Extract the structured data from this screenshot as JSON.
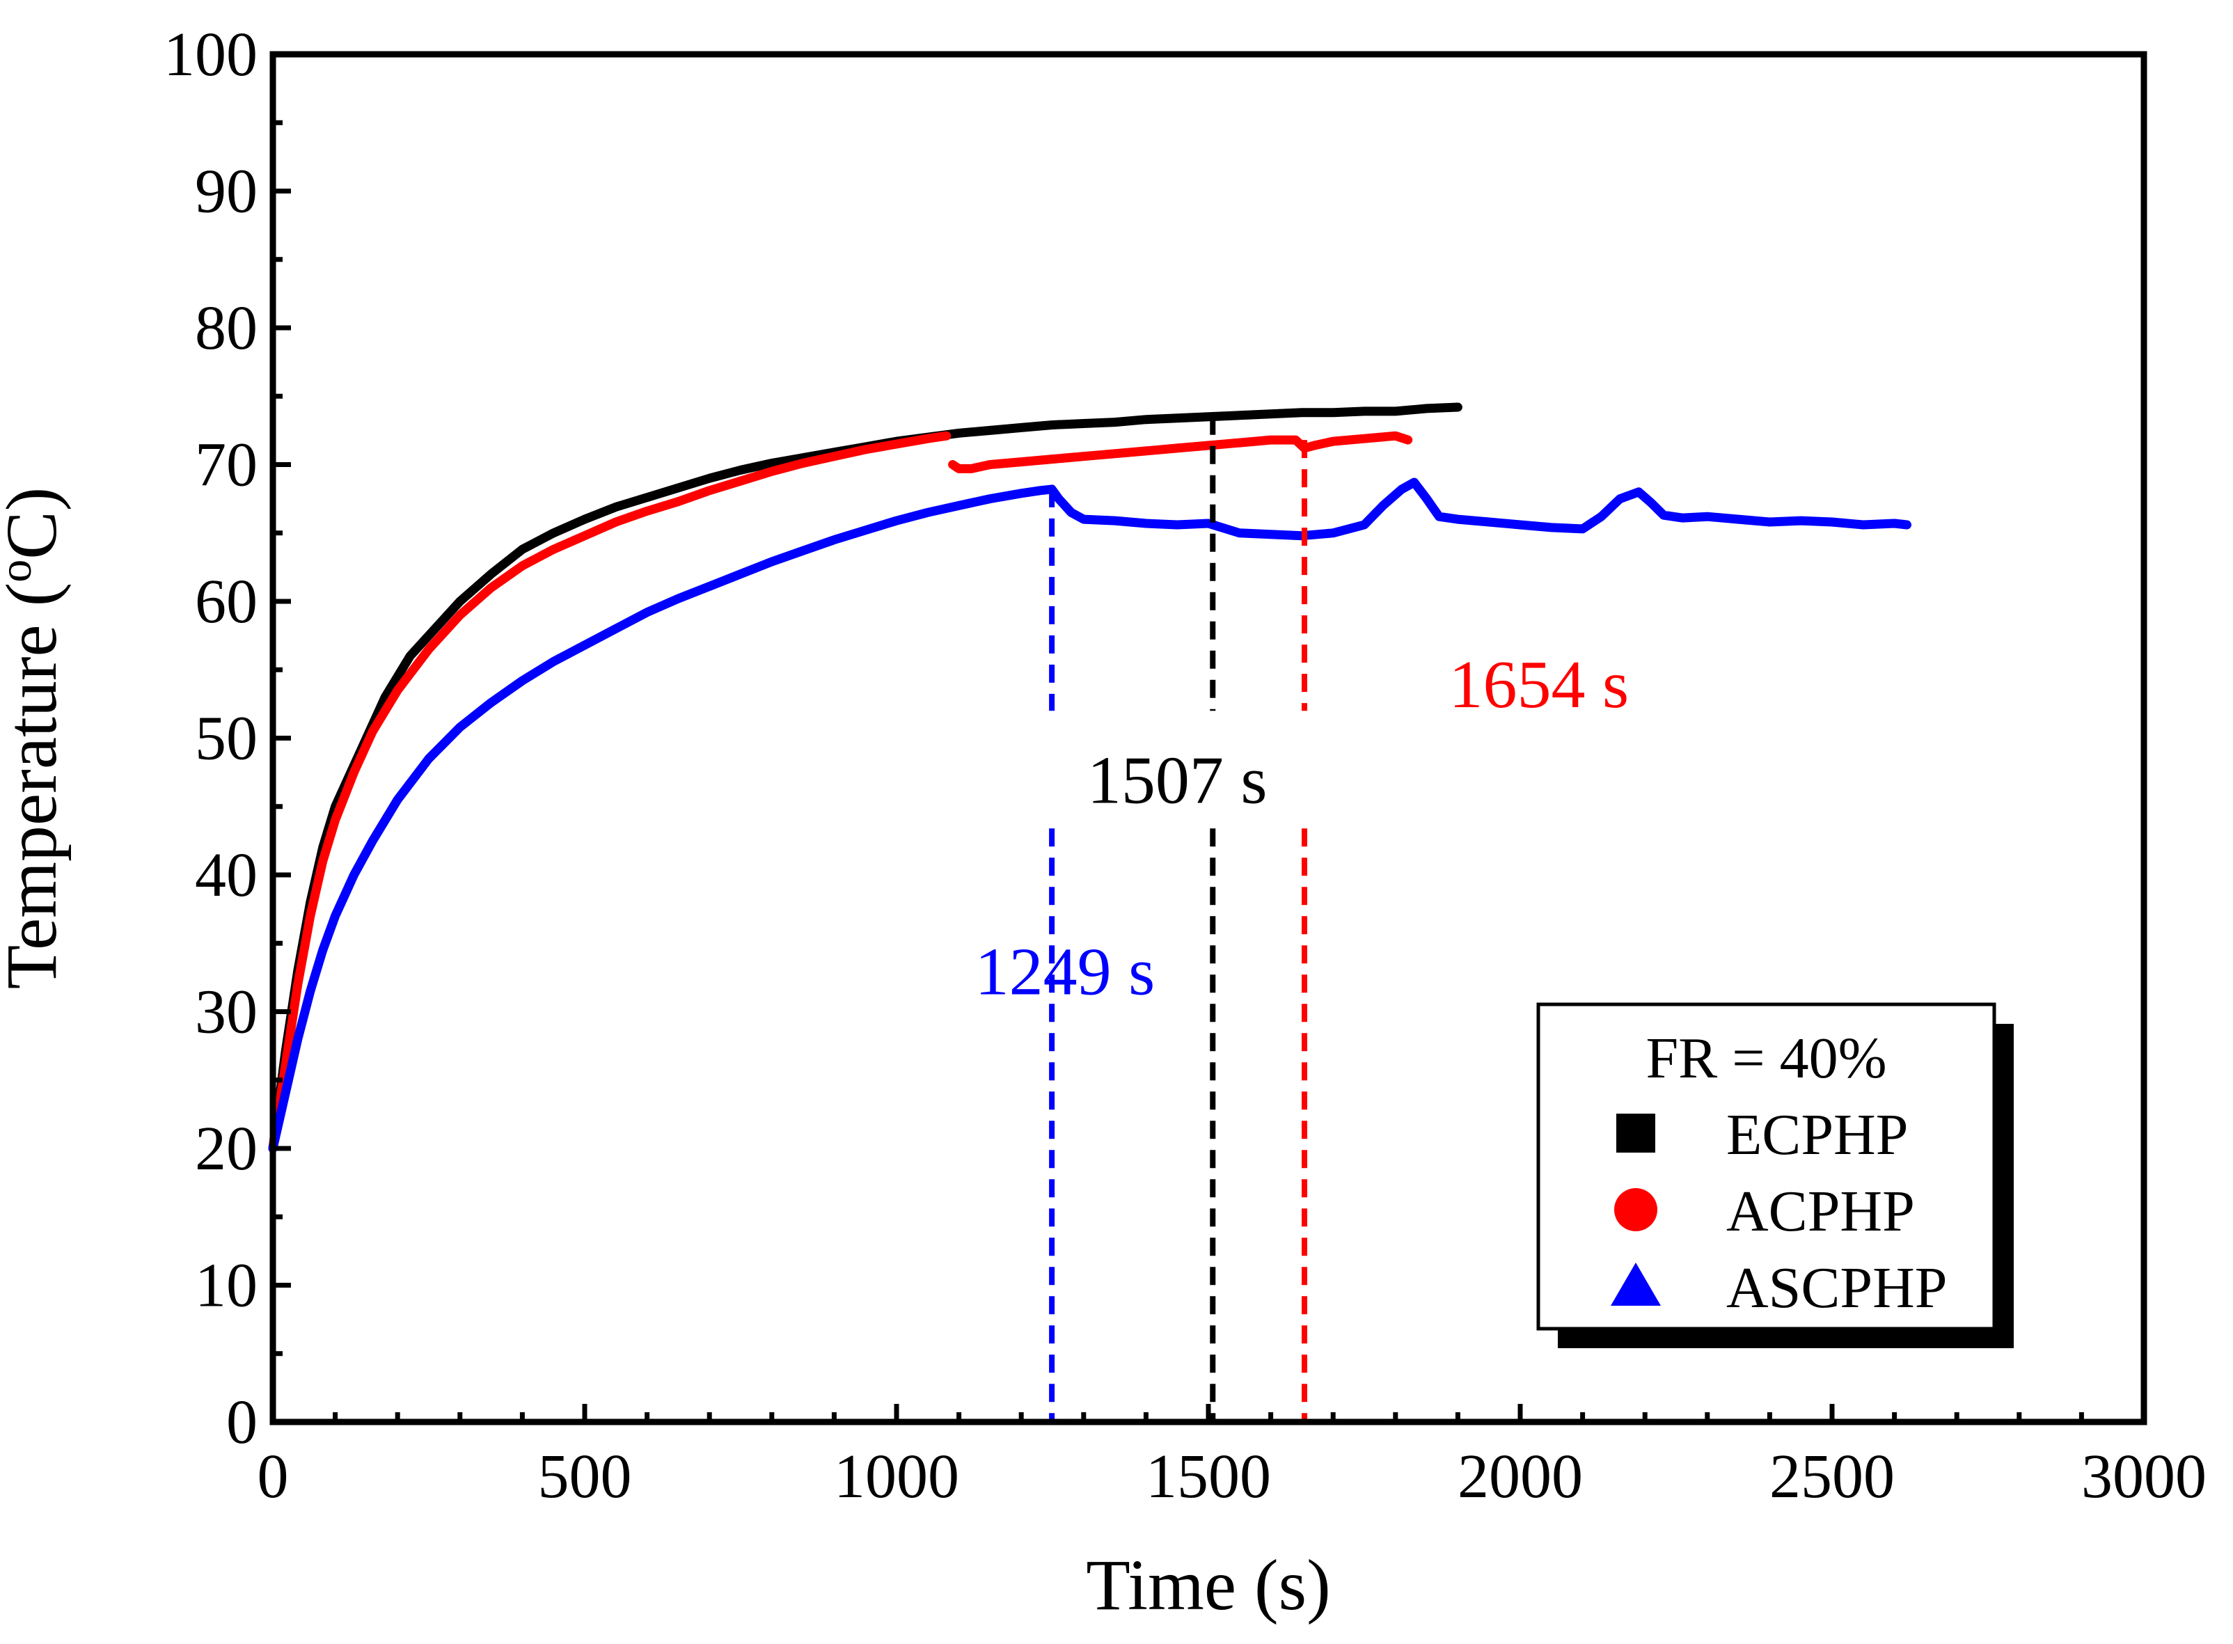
{
  "chart_data": {
    "type": "line",
    "xlabel": "Time (s)",
    "ylabel_parts": [
      "Temperature (",
      "o",
      "C)"
    ],
    "xlim": [
      0,
      3000
    ],
    "ylim": [
      0,
      100
    ],
    "xticks": [
      0,
      500,
      1000,
      1500,
      2000,
      2500,
      3000
    ],
    "yticks": [
      0,
      10,
      20,
      30,
      40,
      50,
      60,
      70,
      80,
      90,
      100
    ],
    "xtick_labels": [
      "0",
      "500",
      "1000",
      "1500",
      "2000",
      "2500",
      "3000"
    ],
    "ytick_labels": [
      "0",
      "10",
      "20",
      "30",
      "40",
      "50",
      "60",
      "70",
      "80",
      "90",
      "100"
    ],
    "grid": false,
    "legend": {
      "title": "FR = 40%",
      "position": "bottom-right",
      "entries": [
        {
          "name": "ECPHP",
          "marker": "square",
          "color": "#000000"
        },
        {
          "name": "ACPHP",
          "marker": "circle",
          "color": "#ff0000"
        },
        {
          "name": "ASCPHP",
          "marker": "triangle",
          "color": "#0000ff"
        }
      ]
    },
    "series": [
      {
        "name": "ECPHP",
        "color": "#000000",
        "segments": [
          [
            [
              0,
              20
            ],
            [
              20,
              27
            ],
            [
              40,
              33
            ],
            [
              60,
              38
            ],
            [
              80,
              42
            ],
            [
              100,
              45
            ],
            [
              120,
              47
            ],
            [
              150,
              50
            ],
            [
              180,
              53
            ],
            [
              220,
              56
            ],
            [
              260,
              58
            ],
            [
              300,
              60
            ],
            [
              350,
              62
            ],
            [
              400,
              63.8
            ],
            [
              450,
              65
            ],
            [
              500,
              66
            ],
            [
              550,
              66.9
            ],
            [
              600,
              67.6
            ],
            [
              650,
              68.3
            ],
            [
              700,
              69
            ],
            [
              750,
              69.6
            ],
            [
              800,
              70.1
            ],
            [
              850,
              70.5
            ],
            [
              900,
              70.9
            ],
            [
              950,
              71.3
            ],
            [
              1000,
              71.7
            ],
            [
              1050,
              72
            ],
            [
              1100,
              72.3
            ],
            [
              1150,
              72.5
            ],
            [
              1200,
              72.7
            ],
            [
              1250,
              72.9
            ],
            [
              1300,
              73
            ],
            [
              1350,
              73.1
            ],
            [
              1400,
              73.3
            ],
            [
              1450,
              73.4
            ],
            [
              1500,
              73.5
            ],
            [
              1550,
              73.6
            ],
            [
              1600,
              73.7
            ],
            [
              1650,
              73.8
            ],
            [
              1700,
              73.8
            ],
            [
              1750,
              73.9
            ],
            [
              1800,
              73.9
            ],
            [
              1850,
              74.1
            ],
            [
              1900,
              74.2
            ]
          ]
        ]
      },
      {
        "name": "ACPHP",
        "color": "#ff0000",
        "segments": [
          [
            [
              0,
              20
            ],
            [
              20,
              26
            ],
            [
              40,
              32
            ],
            [
              60,
              37
            ],
            [
              80,
              41
            ],
            [
              100,
              44
            ],
            [
              130,
              47.5
            ],
            [
              160,
              50.5
            ],
            [
              200,
              53.5
            ],
            [
              250,
              56.5
            ],
            [
              300,
              59
            ],
            [
              350,
              61
            ],
            [
              400,
              62.6
            ],
            [
              450,
              63.8
            ],
            [
              500,
              64.8
            ],
            [
              550,
              65.8
            ],
            [
              600,
              66.6
            ],
            [
              650,
              67.3
            ],
            [
              700,
              68.1
            ],
            [
              750,
              68.8
            ],
            [
              800,
              69.5
            ],
            [
              850,
              70.1
            ],
            [
              900,
              70.6
            ],
            [
              950,
              71.1
            ],
            [
              1000,
              71.5
            ],
            [
              1050,
              71.9
            ],
            [
              1080,
              72.1
            ]
          ],
          [
            [
              1090,
              70
            ],
            [
              1100,
              69.7
            ],
            [
              1120,
              69.7
            ],
            [
              1150,
              70
            ],
            [
              1200,
              70.2
            ],
            [
              1250,
              70.4
            ],
            [
              1300,
              70.6
            ],
            [
              1350,
              70.8
            ],
            [
              1400,
              71
            ],
            [
              1450,
              71.2
            ],
            [
              1500,
              71.4
            ],
            [
              1550,
              71.6
            ],
            [
              1600,
              71.8
            ],
            [
              1640,
              71.8
            ],
            [
              1654,
              71.2
            ],
            [
              1670,
              71.4
            ],
            [
              1700,
              71.7
            ],
            [
              1750,
              71.9
            ],
            [
              1800,
              72.1
            ],
            [
              1820,
              71.8
            ]
          ]
        ]
      },
      {
        "name": "ASCPHP",
        "color": "#0000ff",
        "segments": [
          [
            [
              0,
              20
            ],
            [
              20,
              24
            ],
            [
              40,
              28
            ],
            [
              60,
              31.5
            ],
            [
              80,
              34.5
            ],
            [
              100,
              37
            ],
            [
              130,
              40
            ],
            [
              160,
              42.5
            ],
            [
              200,
              45.5
            ],
            [
              250,
              48.5
            ],
            [
              300,
              50.8
            ],
            [
              350,
              52.6
            ],
            [
              400,
              54.2
            ],
            [
              450,
              55.6
            ],
            [
              500,
              56.8
            ],
            [
              550,
              58
            ],
            [
              600,
              59.2
            ],
            [
              650,
              60.2
            ],
            [
              700,
              61.1
            ],
            [
              750,
              62
            ],
            [
              800,
              62.9
            ],
            [
              850,
              63.7
            ],
            [
              900,
              64.5
            ],
            [
              950,
              65.2
            ],
            [
              1000,
              65.9
            ],
            [
              1050,
              66.5
            ],
            [
              1100,
              67
            ],
            [
              1150,
              67.5
            ],
            [
              1200,
              67.9
            ],
            [
              1230,
              68.1
            ],
            [
              1249,
              68.2
            ],
            [
              1260,
              67.5
            ],
            [
              1280,
              66.5
            ],
            [
              1300,
              66
            ],
            [
              1350,
              65.9
            ],
            [
              1400,
              65.7
            ],
            [
              1450,
              65.6
            ],
            [
              1500,
              65.7
            ],
            [
              1550,
              65
            ],
            [
              1600,
              64.9
            ],
            [
              1650,
              64.8
            ],
            [
              1700,
              65
            ],
            [
              1750,
              65.6
            ],
            [
              1780,
              67
            ],
            [
              1810,
              68.2
            ],
            [
              1830,
              68.7
            ],
            [
              1850,
              67.5
            ],
            [
              1870,
              66.2
            ],
            [
              1900,
              66
            ],
            [
              1950,
              65.8
            ],
            [
              2000,
              65.6
            ],
            [
              2050,
              65.4
            ],
            [
              2100,
              65.3
            ],
            [
              2130,
              66.2
            ],
            [
              2160,
              67.5
            ],
            [
              2190,
              68
            ],
            [
              2210,
              67.2
            ],
            [
              2230,
              66.3
            ],
            [
              2260,
              66.1
            ],
            [
              2300,
              66.2
            ],
            [
              2350,
              66
            ],
            [
              2400,
              65.8
            ],
            [
              2450,
              65.9
            ],
            [
              2500,
              65.8
            ],
            [
              2550,
              65.6
            ],
            [
              2600,
              65.7
            ],
            [
              2620,
              65.6
            ]
          ]
        ]
      }
    ],
    "annotations": [
      {
        "label": "1249 s",
        "x": 1249,
        "color": "#0000ff",
        "line_top": 68.2,
        "text_pos": [
          1270,
          33
        ]
      },
      {
        "label": "1507 s",
        "x": 1507,
        "color": "#000000",
        "line_top": 73.5,
        "text_pos": [
          1450,
          47
        ]
      },
      {
        "label": "1654 s",
        "x": 1654,
        "color": "#ff0000",
        "line_top": 71.8,
        "text_pos": [
          2030,
          54
        ]
      }
    ]
  }
}
